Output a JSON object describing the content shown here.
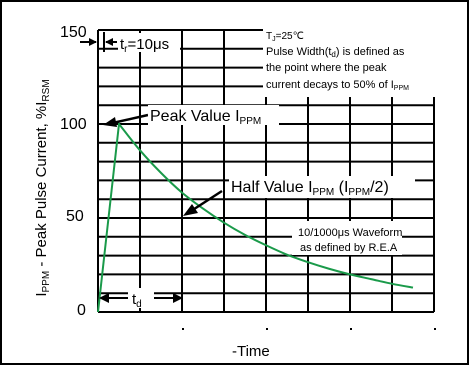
{
  "chart_data": {
    "type": "line",
    "ylabel": "I<sub>PPM</sub> - Peak Pulse Current, %I<sub>RSM</sub>",
    "ylabel_parts": [
      "I",
      "PPM",
      " - Peak Pulse Current, %I",
      "RSM"
    ],
    "xlabel": "-Time",
    "y_ticks": [
      "150",
      "100",
      "50",
      "0"
    ],
    "ylim": [
      0,
      150
    ],
    "grid": true,
    "series": [
      {
        "color": "#1a9a4a",
        "x": [
          0,
          0.6,
          1,
          2,
          3,
          4,
          5,
          6,
          7,
          8,
          9,
          10,
          11,
          12,
          13,
          14,
          15
        ],
        "y": [
          0,
          60,
          100,
          86,
          74,
          63.5,
          55,
          47.5,
          41,
          35.5,
          30.5,
          26.5,
          23,
          20,
          17.5,
          15,
          13
        ]
      }
    ],
    "annotations": {
      "tr": {
        "base": "t",
        "sub": "r",
        "rest": "=10μs"
      },
      "conditions": {
        "tj_base": "T",
        "tj_sub": "J",
        "tj_rest": "=25℃",
        "line1_pre": "Pulse Width(t",
        "line1_sub": "d",
        "line1_post": ") is defined as",
        "line2": "the point where the peak",
        "line3_pre": "current decays to 50% of I",
        "line3_sub": "PPM"
      },
      "peak": {
        "pre": "Peak Value I",
        "sub": "PPM"
      },
      "half": {
        "pre": "Half Value I",
        "sub1": "PPM",
        "mid": " (I",
        "sub2": "PPM",
        "post": "/2)"
      },
      "waveform_line1": "10/1000μs Waveform",
      "waveform_line2": "as defined by R.E.A",
      "td": {
        "base": "t",
        "sub": "d"
      }
    }
  }
}
